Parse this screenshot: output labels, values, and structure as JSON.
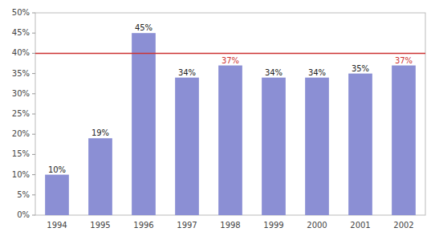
{
  "chart_data": {
    "type": "bar",
    "categories": [
      "1994",
      "1995",
      "1996",
      "1997",
      "1998",
      "1999",
      "2000",
      "2001",
      "2002"
    ],
    "values": [
      10,
      19,
      45,
      34,
      37,
      34,
      34,
      35,
      37
    ],
    "value_labels": [
      "10%",
      "19%",
      "45%",
      "34%",
      "37%",
      "34%",
      "34%",
      "35%",
      "37%"
    ],
    "data_labels": true,
    "color": "#8B8FD4",
    "reference_line": 40,
    "reference_color": "#CC3333",
    "highlight_categories": [
      "1998",
      "2002"
    ],
    "ylim": [
      0,
      50
    ],
    "yticks": [
      {
        "value": 0,
        "label": "0%"
      },
      {
        "value": 5,
        "label": "5%"
      },
      {
        "value": 10,
        "label": "10%"
      },
      {
        "value": 15,
        "label": "15%"
      },
      {
        "value": 20,
        "label": "20%"
      },
      {
        "value": 25,
        "label": "25%"
      },
      {
        "value": 30,
        "label": "30%"
      },
      {
        "value": 35,
        "label": "35%"
      },
      {
        "value": 40,
        "label": "40%"
      },
      {
        "value": 45,
        "label": "45%"
      },
      {
        "value": 50,
        "label": "50%"
      }
    ],
    "grid": false
  }
}
